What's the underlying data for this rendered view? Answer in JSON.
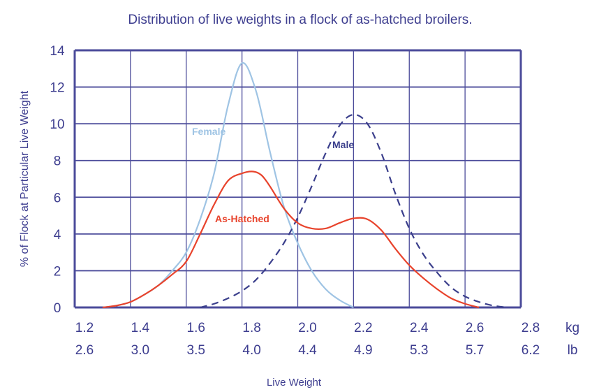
{
  "chart_data": {
    "type": "line",
    "title": "Distribution of live weights in a flock of as-hatched broilers.",
    "xlabel": "Live Weight",
    "ylabel": "% of Flock at Particular Live Weight",
    "xlim": [
      1.2,
      2.8
    ],
    "ylim": [
      0,
      14
    ],
    "grid": true,
    "x_ticks_kg": [
      "1.2",
      "1.4",
      "1.6",
      "1.8",
      "2.0",
      "2.2",
      "2.4",
      "2.6",
      "2.8"
    ],
    "x_ticks_lb": [
      "2.6",
      "3.0",
      "3.5",
      "4.0",
      "4.4",
      "4.9",
      "5.3",
      "5.7",
      "6.2"
    ],
    "x_unit_kg": "kg",
    "x_unit_lb": "lb",
    "y_ticks": [
      "0",
      "2",
      "4",
      "6",
      "8",
      "10",
      "12",
      "14"
    ],
    "series": [
      {
        "name": "Female",
        "color": "#9fc4e4",
        "style": "solid",
        "points": [
          [
            1.3,
            0
          ],
          [
            1.35,
            0.1
          ],
          [
            1.4,
            0.3
          ],
          [
            1.45,
            0.7
          ],
          [
            1.5,
            1.2
          ],
          [
            1.55,
            2.0
          ],
          [
            1.6,
            3.0
          ],
          [
            1.65,
            4.8
          ],
          [
            1.7,
            7.3
          ],
          [
            1.75,
            11.0
          ],
          [
            1.8,
            13.3
          ],
          [
            1.85,
            11.8
          ],
          [
            1.9,
            8.5
          ],
          [
            1.95,
            5.5
          ],
          [
            2.0,
            3.5
          ],
          [
            2.05,
            2.0
          ],
          [
            2.1,
            1.0
          ],
          [
            2.15,
            0.4
          ],
          [
            2.2,
            0
          ]
        ]
      },
      {
        "name": "Male",
        "color": "#3b3f8c",
        "style": "dashed",
        "points": [
          [
            1.65,
            0
          ],
          [
            1.7,
            0.2
          ],
          [
            1.75,
            0.5
          ],
          [
            1.8,
            0.9
          ],
          [
            1.85,
            1.5
          ],
          [
            1.9,
            2.4
          ],
          [
            1.95,
            3.5
          ],
          [
            2.0,
            4.9
          ],
          [
            2.05,
            6.6
          ],
          [
            2.1,
            8.4
          ],
          [
            2.15,
            9.9
          ],
          [
            2.2,
            10.5
          ],
          [
            2.25,
            10.0
          ],
          [
            2.3,
            8.4
          ],
          [
            2.35,
            6.2
          ],
          [
            2.4,
            4.3
          ],
          [
            2.45,
            2.9
          ],
          [
            2.5,
            1.9
          ],
          [
            2.55,
            1.1
          ],
          [
            2.6,
            0.6
          ],
          [
            2.65,
            0.3
          ],
          [
            2.7,
            0.1
          ],
          [
            2.75,
            0
          ]
        ]
      },
      {
        "name": "As-Hatched",
        "color": "#e8432c",
        "style": "solid",
        "points": [
          [
            1.3,
            0
          ],
          [
            1.35,
            0.1
          ],
          [
            1.4,
            0.3
          ],
          [
            1.45,
            0.7
          ],
          [
            1.5,
            1.2
          ],
          [
            1.55,
            1.8
          ],
          [
            1.6,
            2.5
          ],
          [
            1.65,
            4.0
          ],
          [
            1.7,
            5.6
          ],
          [
            1.75,
            6.9
          ],
          [
            1.8,
            7.3
          ],
          [
            1.84,
            7.4
          ],
          [
            1.87,
            7.2
          ],
          [
            1.9,
            6.6
          ],
          [
            1.95,
            5.4
          ],
          [
            2.0,
            4.6
          ],
          [
            2.05,
            4.3
          ],
          [
            2.1,
            4.3
          ],
          [
            2.15,
            4.6
          ],
          [
            2.2,
            4.85
          ],
          [
            2.25,
            4.8
          ],
          [
            2.3,
            4.2
          ],
          [
            2.35,
            3.2
          ],
          [
            2.4,
            2.3
          ],
          [
            2.45,
            1.6
          ],
          [
            2.5,
            1.0
          ],
          [
            2.55,
            0.5
          ],
          [
            2.6,
            0.2
          ],
          [
            2.65,
            0
          ]
        ]
      }
    ]
  },
  "colors": {
    "axis": "#3d3d8f",
    "grid": "#4b4b9a",
    "text": "#3d3d8f"
  }
}
